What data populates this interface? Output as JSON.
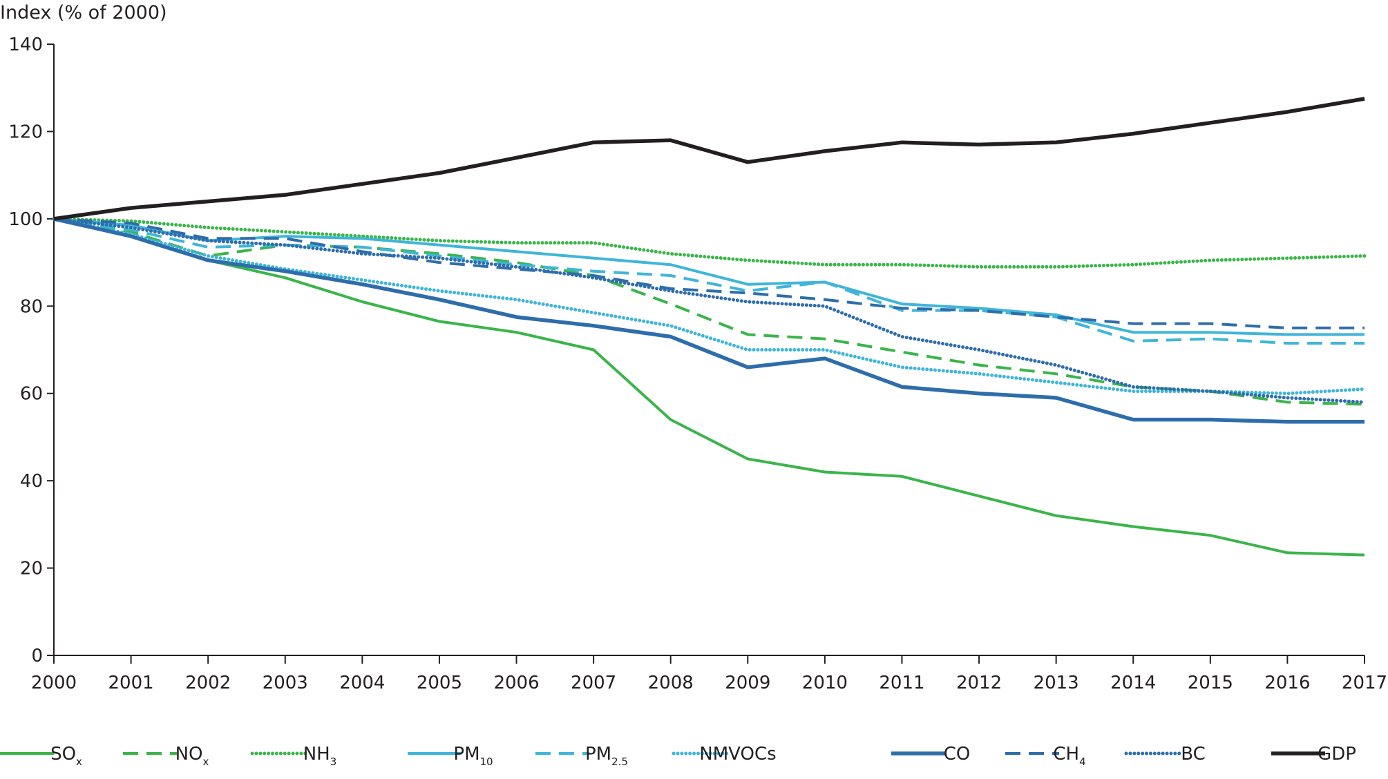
{
  "chart_data": {
    "type": "line",
    "title": "",
    "ylabel": "Index (% of 2000)",
    "xlabel": "",
    "ylim": [
      0,
      140
    ],
    "yticks": [
      0,
      20,
      40,
      60,
      80,
      100,
      120,
      140
    ],
    "x": [
      2000,
      2001,
      2002,
      2003,
      2004,
      2005,
      2006,
      2007,
      2008,
      2009,
      2010,
      2011,
      2012,
      2013,
      2014,
      2015,
      2016,
      2017
    ],
    "grid": false,
    "legend_position": "bottom",
    "series": [
      {
        "name": "SO",
        "sub": "x",
        "color": "#3ab54a",
        "style": "solid",
        "values": [
          100,
          96,
          90.5,
          86.5,
          81,
          76.5,
          74,
          70,
          54,
          45,
          42,
          41,
          36.5,
          32,
          29.5,
          27.5,
          23.5,
          23
        ]
      },
      {
        "name": "NO",
        "sub": "x",
        "color": "#3ab54a",
        "style": "dashed",
        "values": [
          100,
          97,
          91.5,
          94,
          93.5,
          92,
          90,
          87,
          80.5,
          73.5,
          72.5,
          69.5,
          66.5,
          64.5,
          61.5,
          60.5,
          58,
          57.5
        ]
      },
      {
        "name": "NH",
        "sub": "3",
        "color": "#3ab54a",
        "style": "dotted",
        "values": [
          100,
          99.5,
          98,
          97,
          96,
          95,
          94.5,
          94.5,
          92,
          90.5,
          89.5,
          89.5,
          89,
          89,
          89.5,
          90.5,
          91,
          91.5
        ]
      },
      {
        "name": "PM",
        "sub": "10",
        "color": "#3fb5d9",
        "style": "solid",
        "values": [
          100,
          98.5,
          95,
          96,
          95.5,
          94,
          92.5,
          91,
          89.5,
          85,
          85.5,
          80.5,
          79.5,
          78,
          74,
          74,
          73.5,
          73.5
        ]
      },
      {
        "name": "PM",
        "sub": "2.5",
        "color": "#3fb5d9",
        "style": "dashed",
        "values": [
          100,
          97.5,
          93.5,
          94,
          93.5,
          91.5,
          89.5,
          88,
          87,
          83.5,
          85.5,
          79,
          79,
          77.5,
          72,
          72.5,
          71.5,
          71.5
        ]
      },
      {
        "name": "NMVOCs",
        "sub": "",
        "color": "#3fb5d9",
        "style": "dotted",
        "values": [
          100,
          96.5,
          91.5,
          88.5,
          86,
          83.5,
          81.5,
          78.5,
          75.5,
          70,
          70,
          66,
          64.5,
          62.5,
          60.5,
          60.5,
          60,
          61
        ]
      },
      {
        "name": "CO",
        "sub": "",
        "color": "#2e6dab",
        "style": "solid",
        "values": [
          100,
          96,
          90.5,
          88,
          85,
          81.5,
          77.5,
          75.5,
          73,
          66,
          68,
          61.5,
          60,
          59,
          54,
          54,
          53.5,
          53.5
        ]
      },
      {
        "name": "CH",
        "sub": "4",
        "color": "#2e6dab",
        "style": "dashed",
        "values": [
          100,
          99,
          95.5,
          95.5,
          92.5,
          90,
          88.5,
          87,
          84,
          83,
          81.5,
          79.5,
          79,
          77.5,
          76,
          76,
          75,
          75
        ]
      },
      {
        "name": "BC",
        "sub": "",
        "color": "#2e6dab",
        "style": "dotted",
        "values": [
          100,
          98,
          95,
          94,
          92,
          91,
          89,
          86.5,
          83.5,
          81,
          80,
          73,
          70,
          66.5,
          61.5,
          60.5,
          59,
          58
        ]
      },
      {
        "name": "GDP",
        "sub": "",
        "color": "#231f20",
        "style": "solid",
        "values": [
          100,
          102.5,
          104,
          105.5,
          108,
          110.5,
          114,
          117.5,
          118,
          113,
          115.5,
          117.5,
          117,
          117.5,
          119.5,
          122,
          124.5,
          127.5
        ]
      }
    ]
  }
}
